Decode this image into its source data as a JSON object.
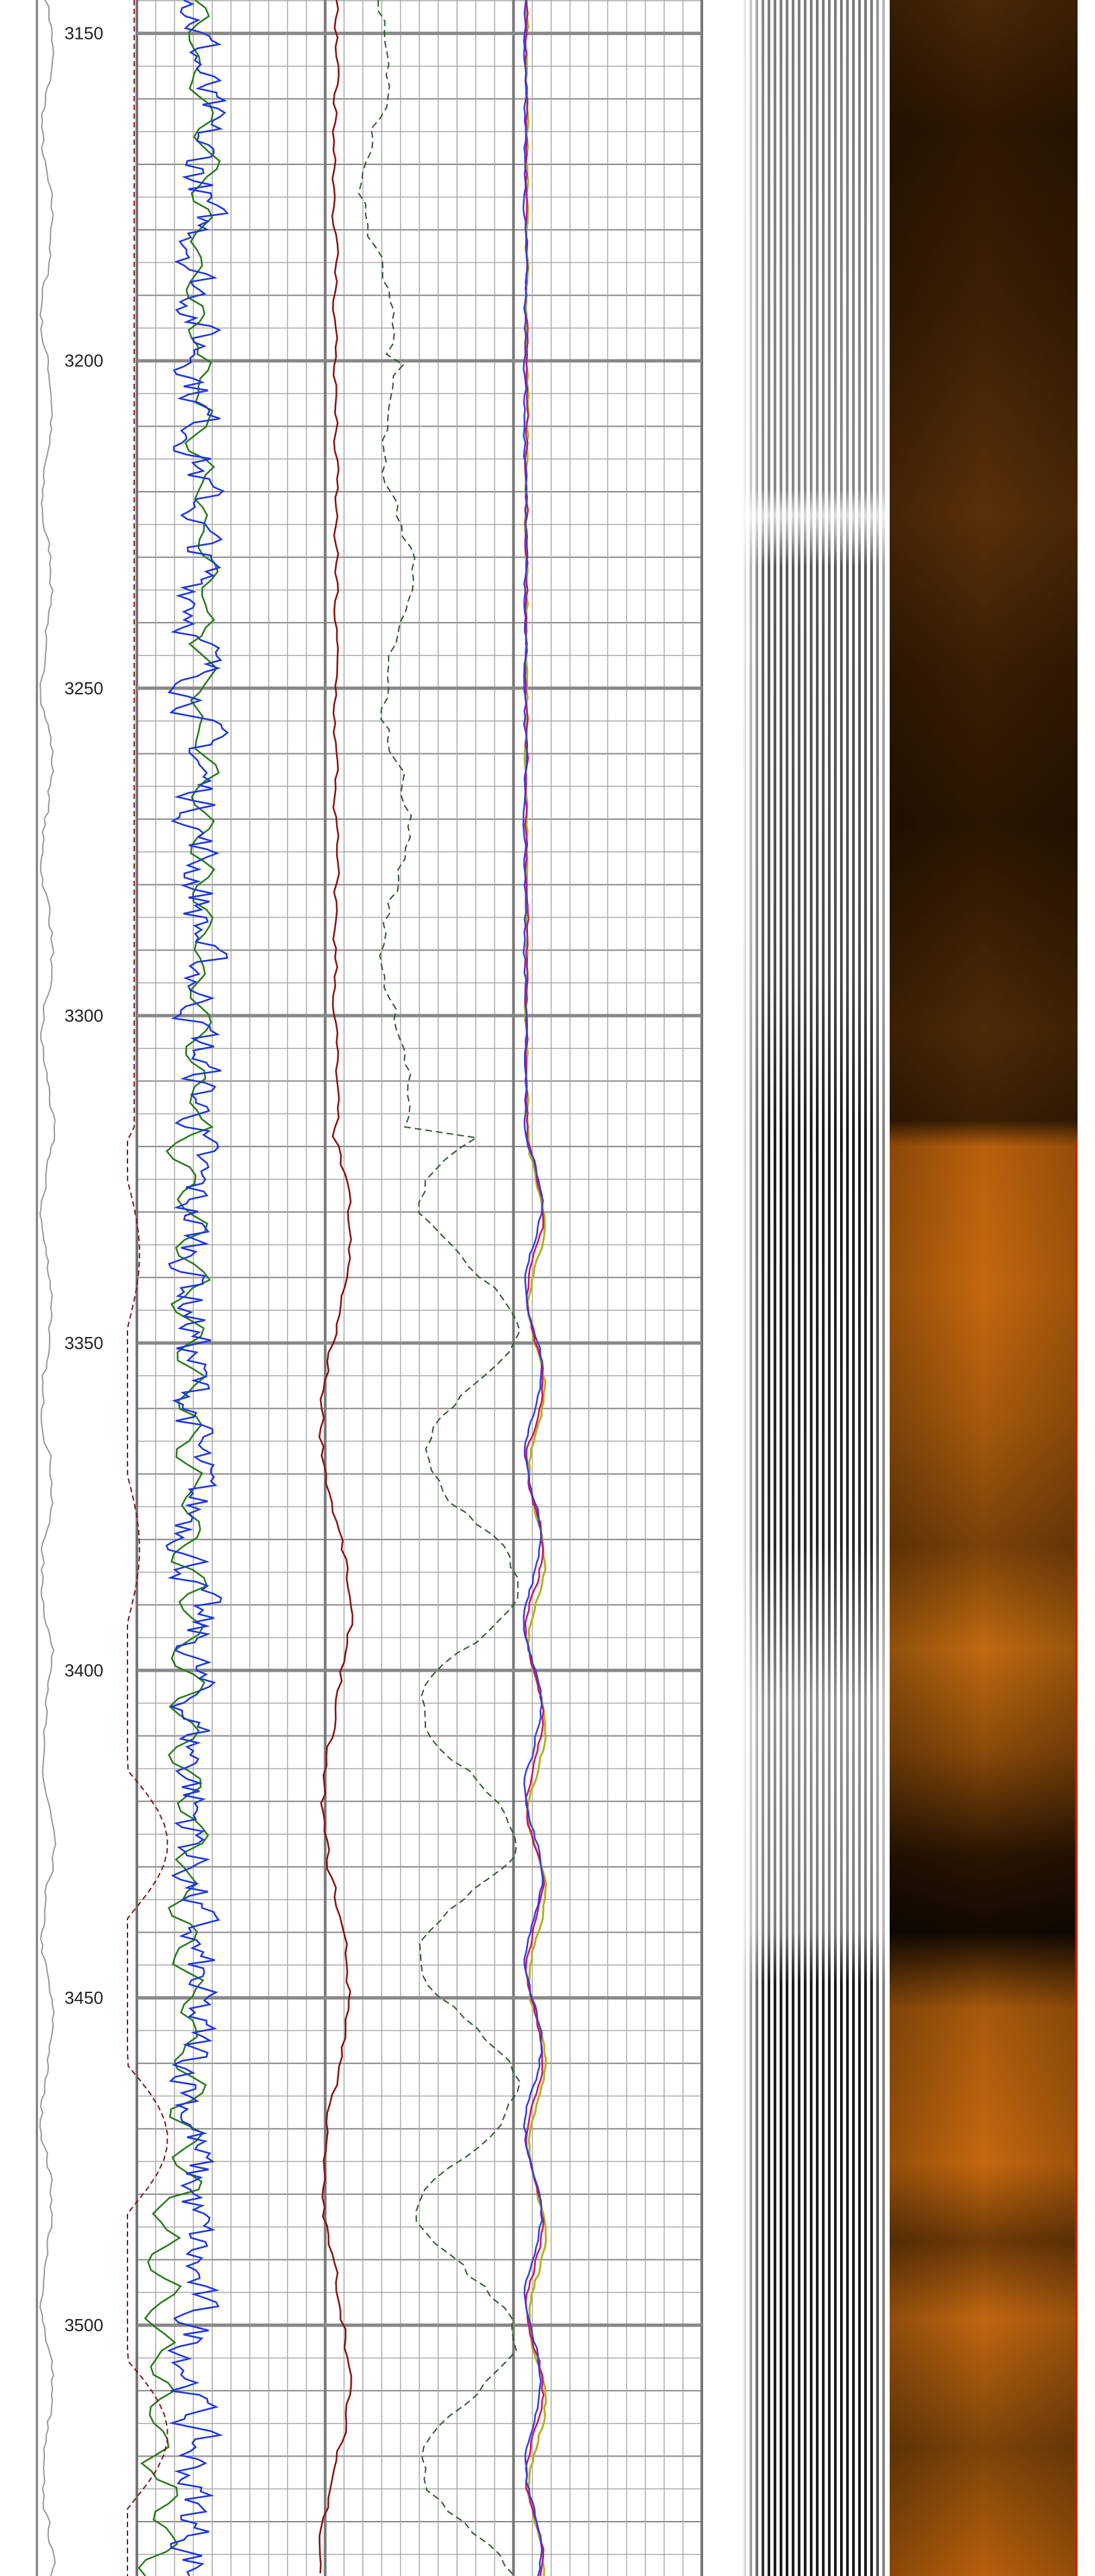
{
  "chart_data": {
    "type": "log",
    "ylim": [
      3144.9,
      3538.3
    ],
    "yticks": [
      3150,
      3200,
      3250,
      3300,
      3350,
      3400,
      3450,
      3500
    ]
  }
}
